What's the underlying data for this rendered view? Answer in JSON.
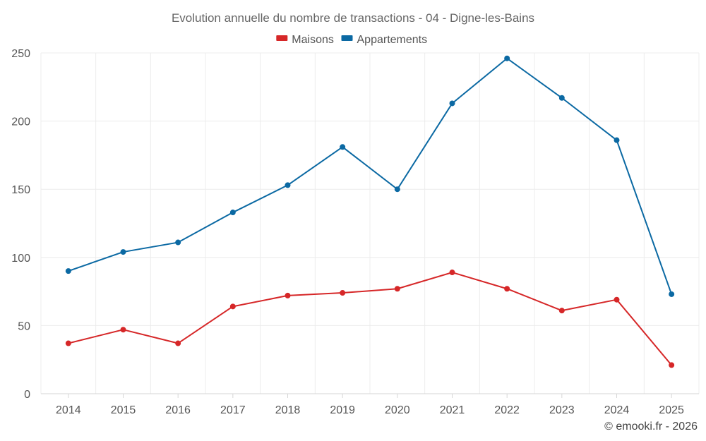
{
  "chart_data": {
    "type": "line",
    "title": "Evolution annuelle du nombre de transactions - 04 - Digne-les-Bains",
    "categories": [
      "2014",
      "2015",
      "2016",
      "2017",
      "2018",
      "2019",
      "2020",
      "2021",
      "2022",
      "2023",
      "2024",
      "2025"
    ],
    "series": [
      {
        "name": "Maisons",
        "color": "#d62728",
        "values": [
          37,
          47,
          37,
          64,
          72,
          74,
          77,
          89,
          77,
          61,
          69,
          21
        ]
      },
      {
        "name": "Appartements",
        "color": "#0b69a3",
        "values": [
          90,
          104,
          111,
          133,
          153,
          181,
          150,
          213,
          246,
          217,
          186,
          73
        ]
      }
    ],
    "ylim": [
      0,
      250
    ],
    "yticks": [
      "0",
      "50",
      "100",
      "150",
      "200",
      "250"
    ],
    "grid": true,
    "legend": "top-center",
    "credit": "© emooki.fr - 2026"
  }
}
